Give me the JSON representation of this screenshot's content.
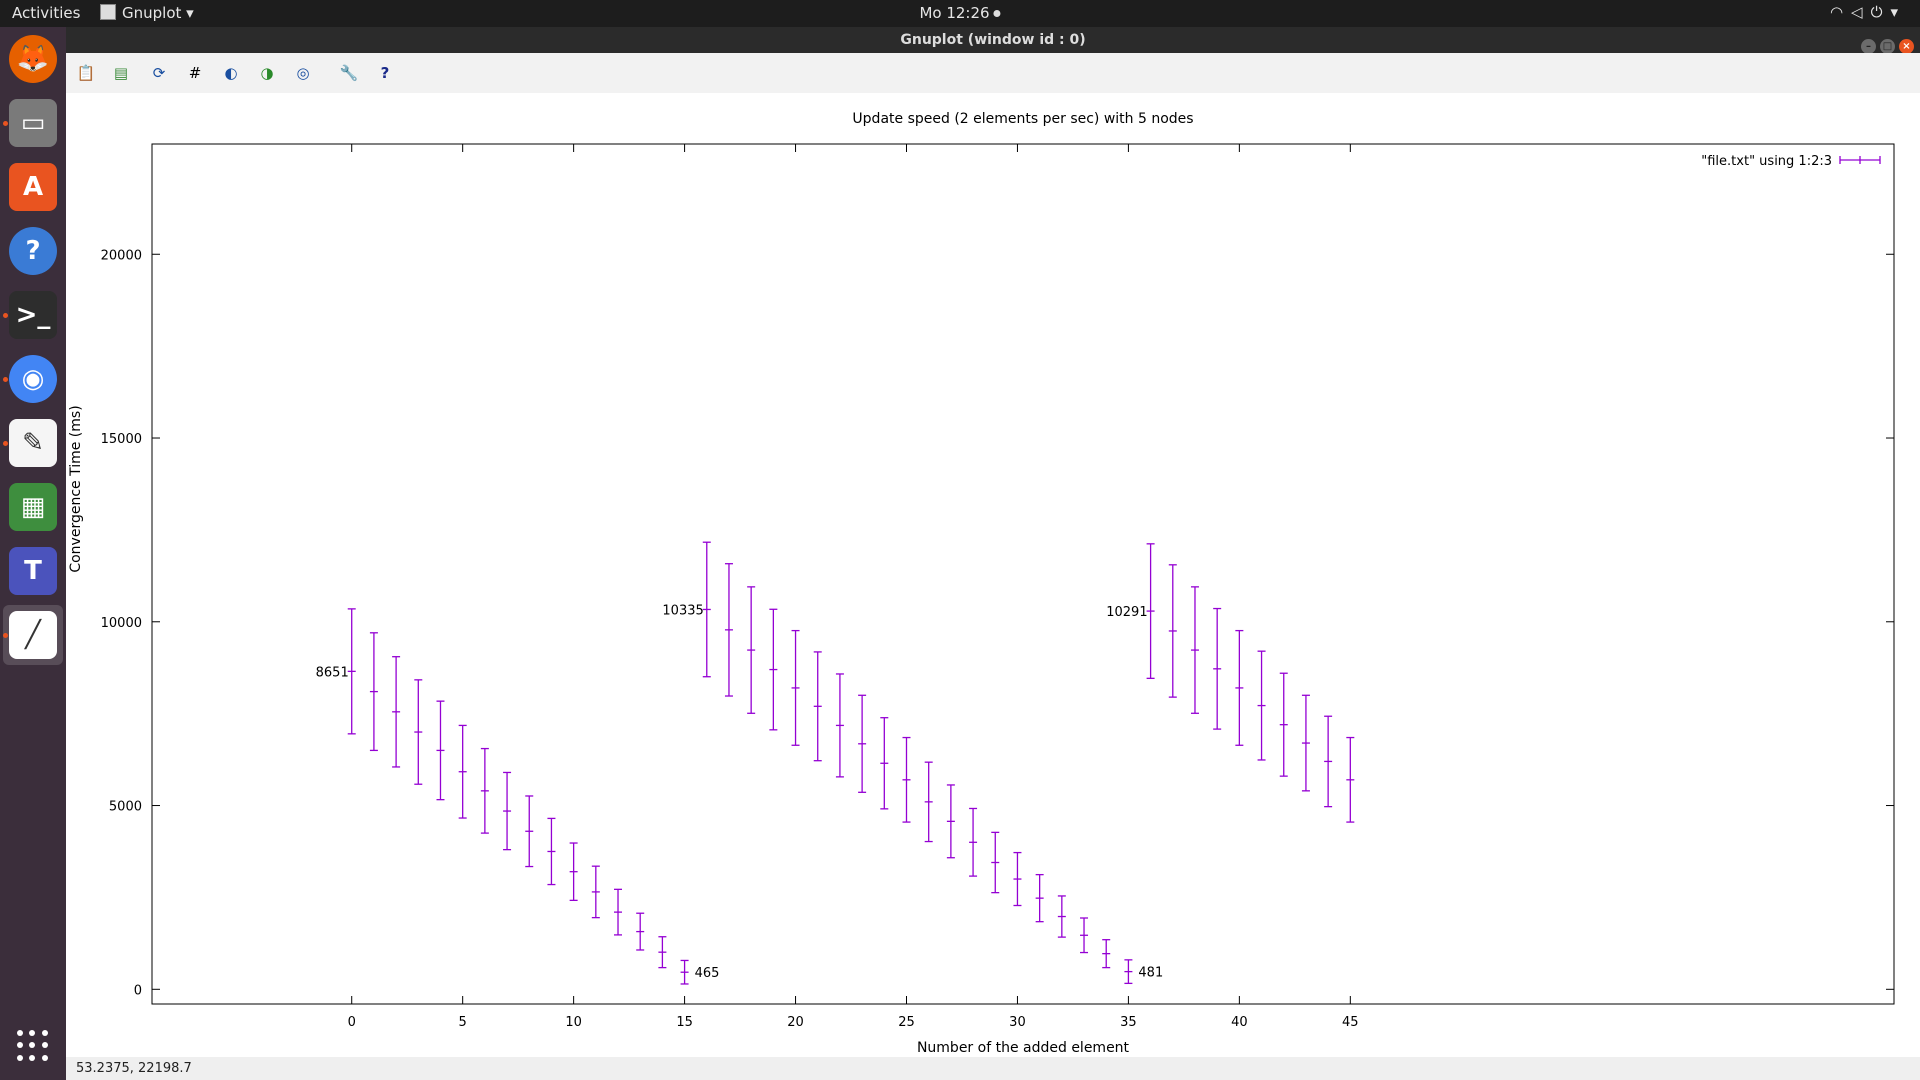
{
  "topbar": {
    "activities": "Activities",
    "app_name": "Gnuplot",
    "clock": "Mo 12:26",
    "tray_icons": [
      "wifi-icon",
      "volume-muted-icon",
      "power-icon",
      "chevron-down-icon"
    ]
  },
  "dock": {
    "items": [
      {
        "name": "firefox",
        "color": "#e66000",
        "running": false
      },
      {
        "name": "files",
        "color": "#7a7a7a",
        "running": true
      },
      {
        "name": "software-center",
        "color": "#e95420",
        "running": false
      },
      {
        "name": "help",
        "color": "#3a7bd5",
        "running": false
      },
      {
        "name": "terminal",
        "color": "#2d2d2d",
        "running": true
      },
      {
        "name": "chrome",
        "color": "#4285f4",
        "running": true
      },
      {
        "name": "text-editor",
        "color": "#f5f5f5",
        "running": true
      },
      {
        "name": "gnumeric",
        "color": "#3e8e3e",
        "running": false
      },
      {
        "name": "teams",
        "color": "#4b53bc",
        "running": false
      },
      {
        "name": "gnuplot",
        "color": "#ffffff",
        "running": true,
        "active": true
      }
    ]
  },
  "window": {
    "title": "Gnuplot (window id : 0)"
  },
  "toolbar": {
    "icons": [
      "copy-icon",
      "export-icon",
      "replot-icon",
      "grid-icon",
      "zoom-previous-icon",
      "zoom-next-icon",
      "autoscale-icon",
      "settings-icon",
      "help-icon"
    ]
  },
  "chart_data": {
    "type": "errorbar",
    "title": "Update speed (2 elements per sec) with 5 nodes",
    "xlabel": "Number of the added element",
    "ylabel": "Convergence Time (ms)",
    "xlim": [
      -9,
      69.5
    ],
    "ylim": [
      -400,
      23000
    ],
    "xticks": [
      0,
      5,
      10,
      15,
      20,
      25,
      30,
      35,
      40,
      45
    ],
    "yticks": [
      0,
      5000,
      10000,
      15000,
      20000
    ],
    "legend": {
      "label": "\"file.txt\" using 1:2:3",
      "position": "top-right"
    },
    "series_color": "#9400d3",
    "points": [
      {
        "x": 0,
        "y": 8651,
        "err": 1700
      },
      {
        "x": 1,
        "y": 8100,
        "err": 1600
      },
      {
        "x": 2,
        "y": 7550,
        "err": 1500
      },
      {
        "x": 3,
        "y": 7000,
        "err": 1420
      },
      {
        "x": 4,
        "y": 6500,
        "err": 1340
      },
      {
        "x": 5,
        "y": 5920,
        "err": 1260
      },
      {
        "x": 6,
        "y": 5400,
        "err": 1150
      },
      {
        "x": 7,
        "y": 4850,
        "err": 1050
      },
      {
        "x": 8,
        "y": 4300,
        "err": 960
      },
      {
        "x": 9,
        "y": 3750,
        "err": 900
      },
      {
        "x": 10,
        "y": 3200,
        "err": 780
      },
      {
        "x": 11,
        "y": 2650,
        "err": 700
      },
      {
        "x": 12,
        "y": 2100,
        "err": 620
      },
      {
        "x": 13,
        "y": 1570,
        "err": 500
      },
      {
        "x": 14,
        "y": 1010,
        "err": 420
      },
      {
        "x": 15,
        "y": 465,
        "err": 320
      },
      {
        "x": 16,
        "y": 10335,
        "err": 1830
      },
      {
        "x": 17,
        "y": 9780,
        "err": 1800
      },
      {
        "x": 18,
        "y": 9230,
        "err": 1720
      },
      {
        "x": 19,
        "y": 8700,
        "err": 1640
      },
      {
        "x": 20,
        "y": 8200,
        "err": 1560
      },
      {
        "x": 21,
        "y": 7700,
        "err": 1480
      },
      {
        "x": 22,
        "y": 7180,
        "err": 1400
      },
      {
        "x": 23,
        "y": 6680,
        "err": 1320
      },
      {
        "x": 24,
        "y": 6150,
        "err": 1240
      },
      {
        "x": 25,
        "y": 5700,
        "err": 1150
      },
      {
        "x": 26,
        "y": 5100,
        "err": 1080
      },
      {
        "x": 27,
        "y": 4570,
        "err": 990
      },
      {
        "x": 28,
        "y": 4000,
        "err": 920
      },
      {
        "x": 29,
        "y": 3450,
        "err": 820
      },
      {
        "x": 30,
        "y": 3000,
        "err": 720
      },
      {
        "x": 31,
        "y": 2480,
        "err": 640
      },
      {
        "x": 32,
        "y": 1980,
        "err": 560
      },
      {
        "x": 33,
        "y": 1470,
        "err": 470
      },
      {
        "x": 34,
        "y": 970,
        "err": 380
      },
      {
        "x": 35,
        "y": 481,
        "err": 320
      },
      {
        "x": 36,
        "y": 10291,
        "err": 1830
      },
      {
        "x": 37,
        "y": 9750,
        "err": 1800
      },
      {
        "x": 38,
        "y": 9230,
        "err": 1720
      },
      {
        "x": 39,
        "y": 8720,
        "err": 1640
      },
      {
        "x": 40,
        "y": 8200,
        "err": 1560
      },
      {
        "x": 41,
        "y": 7720,
        "err": 1480
      },
      {
        "x": 42,
        "y": 7200,
        "err": 1400
      },
      {
        "x": 43,
        "y": 6700,
        "err": 1300
      },
      {
        "x": 44,
        "y": 6200,
        "err": 1230
      },
      {
        "x": 45,
        "y": 5700,
        "err": 1150
      }
    ],
    "annotations": [
      {
        "x": 0,
        "y": 8651,
        "text": "8651",
        "side": "left"
      },
      {
        "x": 15,
        "y": 465,
        "text": "465",
        "side": "right"
      },
      {
        "x": 16,
        "y": 10335,
        "text": "10335",
        "side": "left"
      },
      {
        "x": 35,
        "y": 481,
        "text": "481",
        "side": "right"
      },
      {
        "x": 36,
        "y": 10291,
        "text": "10291",
        "side": "left"
      }
    ]
  },
  "status": {
    "coordinates": "53.2375,  22198.7"
  }
}
